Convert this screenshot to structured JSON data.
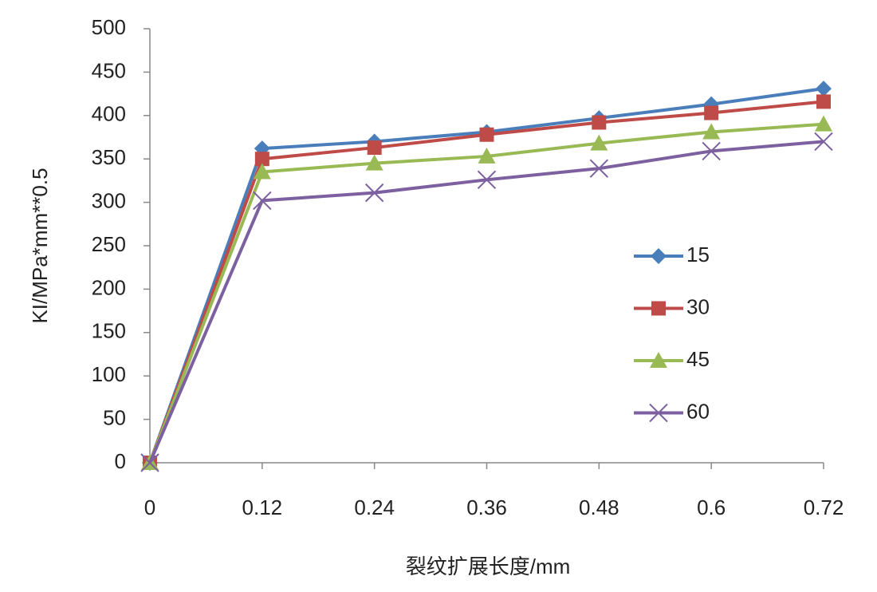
{
  "chart_data": {
    "type": "line",
    "x_label": "裂纹扩展长度/mm",
    "y_label": "KI/MPa*mm**0.5",
    "x": [
      0,
      0.12,
      0.24,
      0.36,
      0.48,
      0.6,
      0.72
    ],
    "xlim": [
      0,
      0.72
    ],
    "xticks": [
      0,
      0.12,
      0.24,
      0.36,
      0.48,
      0.6,
      0.72
    ],
    "ylim": [
      0,
      500
    ],
    "yticks": [
      0,
      50,
      100,
      150,
      200,
      250,
      300,
      350,
      400,
      450,
      500
    ],
    "grid": false,
    "legend": "right",
    "series": [
      {
        "name": "15",
        "color": "#4a7ebb",
        "marker": "diamond",
        "values": [
          0,
          362,
          370,
          381,
          397,
          413,
          431
        ]
      },
      {
        "name": "30",
        "color": "#be4b48",
        "marker": "square",
        "values": [
          0,
          350,
          363,
          378,
          392,
          403,
          416
        ]
      },
      {
        "name": "45",
        "color": "#98b954",
        "marker": "triangle",
        "values": [
          0,
          335,
          345,
          353,
          368,
          381,
          390
        ]
      },
      {
        "name": "60",
        "color": "#7d60a0",
        "marker": "x",
        "values": [
          0,
          302,
          311,
          326,
          339,
          359,
          370
        ]
      }
    ]
  }
}
